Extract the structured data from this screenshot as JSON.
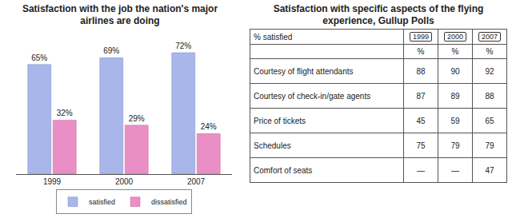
{
  "chart_data": {
    "type": "bar",
    "title": "Satisfaction with the job the nation's major airlines are doing",
    "categories": [
      "1999",
      "2000",
      "2007"
    ],
    "series": [
      {
        "name": "satisfied",
        "color": "#a9b6ea",
        "values": [
          65,
          69,
          72
        ],
        "value_labels": [
          "65%",
          "69%",
          "72%"
        ]
      },
      {
        "name": "dissatisfied",
        "color": "#e98fc6",
        "values": [
          32,
          29,
          24
        ],
        "value_labels": [
          "32%",
          "29%",
          "24%"
        ]
      }
    ],
    "data_labels": true,
    "legend": "bottom",
    "tick_labels": "x",
    "grid": false
  },
  "table": {
    "title": "Satisfaction with specific aspects of the flying experience, Gullup Polls",
    "header": [
      "% satisfied",
      "1999",
      "2000",
      "2007"
    ],
    "units": [
      "%",
      "%",
      "%"
    ],
    "rows": [
      [
        "Courtesy of flight attendants",
        88,
        90,
        92
      ],
      [
        "Courtesy of check-in/gate agents",
        87,
        89,
        88
      ],
      [
        "Price of tickets",
        45,
        59,
        65
      ],
      [
        "Schedules",
        75,
        79,
        79
      ],
      [
        "Comfort of seats",
        "—",
        "—",
        47
      ]
    ]
  }
}
